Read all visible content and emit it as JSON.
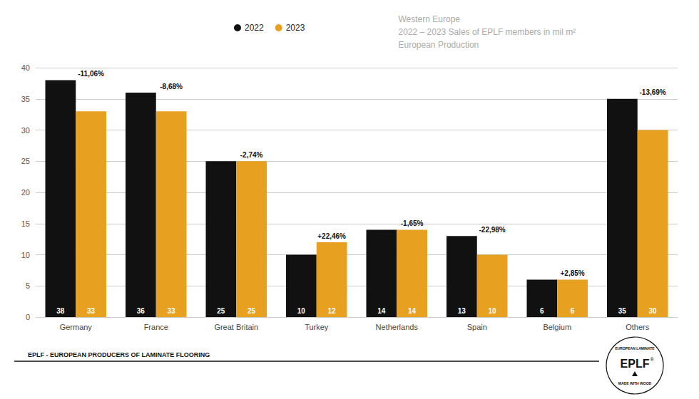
{
  "chart_data": {
    "type": "bar",
    "categories": [
      "Germany",
      "France",
      "Great Britain",
      "Turkey",
      "Netherlands",
      "Spain",
      "Belgium",
      "Others"
    ],
    "series": [
      {
        "name": "2022",
        "color": "#111111",
        "values": [
          38,
          36,
          25,
          10,
          14,
          13,
          6,
          35
        ]
      },
      {
        "name": "2023",
        "color": "#e8a020",
        "values": [
          33,
          33,
          25,
          12,
          14,
          10,
          6,
          30
        ]
      }
    ],
    "pct_changes": [
      "-11,06%",
      "-8,68%",
      "-2,74%",
      "+22,46%",
      "-1,65%",
      "-22,98%",
      "+2,85%",
      "-13,69%"
    ],
    "ylim": [
      0,
      40
    ],
    "yticks": [
      0,
      5,
      10,
      15,
      20,
      25,
      30,
      35,
      40
    ],
    "grid": true,
    "data_labels": true,
    "legend": "top",
    "annotations": [
      "Western Europe\n2022 – 2023 Sales of EPLF members in mil m²\nEuropean Production",
      "EPLF - EUROPEAN PRODUCERS OF LAMINATE FLOORING",
      "EPLF",
      "®",
      "EUROPEAN LAMINATE",
      "MADE WITH WOOD"
    ]
  }
}
